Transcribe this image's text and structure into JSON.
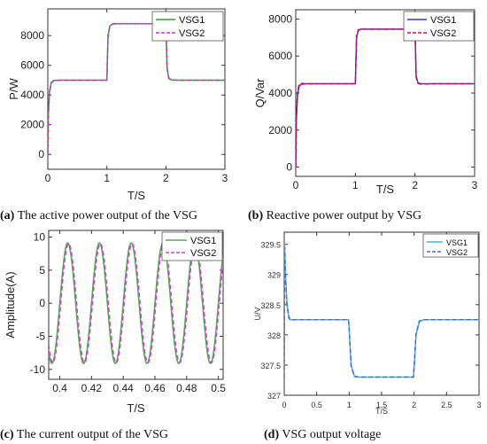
{
  "captions": [
    {
      "letter": "(a)",
      "text": " The active power output of the VSG"
    },
    {
      "letter": "(b)",
      "text": " Reactive power output by VSG"
    },
    {
      "letter": "(c)",
      "text": " The current output of the VSG"
    },
    {
      "letter": "(d)",
      "text": " VSG output voltage"
    }
  ],
  "chart_data": [
    {
      "id": "a",
      "type": "line",
      "xlabel": "T/S",
      "ylabel": "P/W",
      "xlim": [
        0,
        3
      ],
      "ylim": [
        -1000,
        9800
      ],
      "xticks": [
        0,
        1,
        2,
        3
      ],
      "yticks": [
        0,
        2000,
        4000,
        6000,
        8000
      ],
      "legend_position": "top-right",
      "series": [
        {
          "name": "VSG1",
          "color": "#2ca02c",
          "dash": "solid",
          "x": [
            0,
            0.01,
            0.03,
            0.06,
            0.1,
            0.2,
            0.5,
            0.99,
            1.0,
            1.02,
            1.05,
            1.1,
            1.2,
            1.5,
            1.99,
            2.0,
            2.02,
            2.05,
            2.1,
            2.2,
            2.5,
            3.0
          ],
          "y": [
            0,
            2800,
            4300,
            4850,
            4980,
            5000,
            5000,
            5000,
            5000,
            8000,
            8650,
            8790,
            8800,
            8800,
            8800,
            8800,
            5800,
            5100,
            5010,
            5000,
            5000,
            5000
          ]
        },
        {
          "name": "VSG2",
          "color": "#cc33cc",
          "dash": "dashed",
          "x": [
            0,
            0.01,
            0.03,
            0.06,
            0.1,
            0.2,
            0.5,
            0.99,
            1.0,
            1.02,
            1.05,
            1.1,
            1.2,
            1.5,
            1.99,
            2.0,
            2.02,
            2.05,
            2.1,
            2.2,
            2.5,
            3.0
          ],
          "y": [
            0,
            2600,
            4200,
            4800,
            4970,
            5000,
            5000,
            5000,
            5000,
            7900,
            8600,
            8780,
            8800,
            8800,
            8800,
            8800,
            5900,
            5150,
            5020,
            5000,
            5000,
            5000
          ]
        }
      ]
    },
    {
      "id": "b",
      "type": "line",
      "xlabel": "T/S",
      "ylabel": "Q/Var",
      "xlim": [
        0,
        3
      ],
      "ylim": [
        -500,
        8500
      ],
      "xticks": [
        0,
        1,
        2,
        3
      ],
      "yticks": [
        0,
        2000,
        4000,
        6000,
        8000
      ],
      "legend_position": "top-right",
      "series": [
        {
          "name": "VSG1",
          "color": "#3333ee",
          "dash": "solid",
          "x": [
            0,
            0.01,
            0.03,
            0.06,
            0.1,
            0.2,
            0.5,
            0.99,
            1.0,
            1.02,
            1.05,
            1.1,
            1.3,
            1.6,
            1.99,
            2.0,
            2.02,
            2.05,
            2.1,
            2.3,
            2.6,
            3.0
          ],
          "y": [
            0,
            2500,
            3900,
            4400,
            4480,
            4500,
            4500,
            4500,
            4500,
            7000,
            7400,
            7450,
            7450,
            7450,
            7450,
            7450,
            4900,
            4550,
            4500,
            4500,
            4500,
            4500
          ]
        },
        {
          "name": "VSG2",
          "color": "#cc1144",
          "dash": "dashed",
          "x": [
            0,
            0.01,
            0.03,
            0.06,
            0.1,
            0.2,
            0.5,
            0.99,
            1.0,
            1.02,
            1.05,
            1.1,
            1.3,
            1.6,
            1.99,
            2.0,
            2.02,
            2.05,
            2.1,
            2.3,
            2.6,
            3.0
          ],
          "y": [
            0,
            2700,
            4100,
            4500,
            4520,
            4500,
            4500,
            4500,
            4500,
            7100,
            7420,
            7450,
            7450,
            7450,
            7450,
            7450,
            4850,
            4520,
            4480,
            4500,
            4500,
            4500
          ]
        }
      ]
    },
    {
      "id": "c",
      "type": "line",
      "xlabel": "T/S",
      "ylabel": "Amplitude(A)",
      "xlim": [
        0.393,
        0.503
      ],
      "ylim": [
        -11.5,
        11
      ],
      "xticks": [
        0.4,
        0.42,
        0.44,
        0.46,
        0.48,
        0.5
      ],
      "yticks": [
        -10,
        -5,
        0,
        5,
        10
      ],
      "legend_position": "top-right",
      "series": [
        {
          "name": "VSG1",
          "color": "#55aa55",
          "dash": "solid",
          "amplitude": 9.1,
          "frequency_hz": 50,
          "phase_deg": 0
        },
        {
          "name": "VSG2",
          "color": "#cc44cc",
          "dash": "dashed",
          "amplitude": 9.0,
          "frequency_hz": 50,
          "phase_deg": -10
        }
      ]
    },
    {
      "id": "d",
      "type": "line",
      "xlabel": "T/S",
      "ylabel": "U/V",
      "xlim": [
        0,
        3
      ],
      "ylim": [
        327,
        329.7
      ],
      "xticks": [
        0,
        0.5,
        1,
        1.5,
        2,
        2.5,
        3
      ],
      "yticks": [
        327,
        327.5,
        328,
        328.5,
        329,
        329.5
      ],
      "legend_position": "top-right",
      "series": [
        {
          "name": "VSG1",
          "color": "#33bbee",
          "dash": "solid",
          "x": [
            0,
            0.005,
            0.02,
            0.04,
            0.07,
            0.1,
            0.15,
            0.3,
            0.99,
            1.0,
            1.03,
            1.08,
            1.15,
            1.5,
            1.99,
            2.0,
            2.03,
            2.08,
            2.15,
            2.5,
            3.0
          ],
          "y": [
            327.3,
            329.55,
            329.0,
            328.55,
            328.3,
            328.25,
            328.25,
            328.25,
            328.25,
            328.1,
            327.5,
            327.32,
            327.3,
            327.3,
            327.3,
            327.45,
            328.0,
            328.22,
            328.25,
            328.25,
            328.25
          ]
        },
        {
          "name": "VSG2",
          "color": "#5566cc",
          "dash": "dashed",
          "x": [
            0,
            0.005,
            0.02,
            0.04,
            0.07,
            0.1,
            0.15,
            0.3,
            0.99,
            1.0,
            1.03,
            1.08,
            1.15,
            1.5,
            1.99,
            2.0,
            2.03,
            2.08,
            2.15,
            2.5,
            3.0
          ],
          "y": [
            327.3,
            329.45,
            328.95,
            328.5,
            328.28,
            328.24,
            328.25,
            328.25,
            328.25,
            328.1,
            327.48,
            327.31,
            327.3,
            327.3,
            327.3,
            327.46,
            328.02,
            328.23,
            328.25,
            328.25,
            328.25
          ]
        }
      ]
    }
  ]
}
